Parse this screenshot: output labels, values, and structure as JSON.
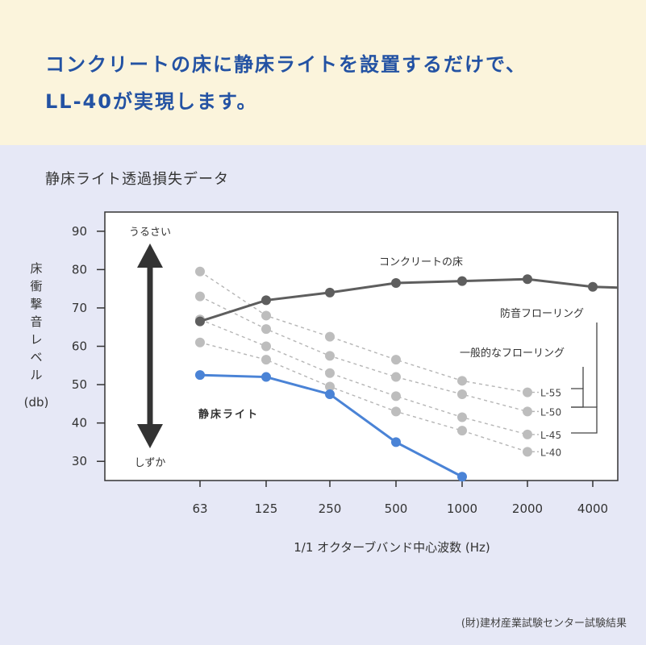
{
  "header": {
    "line1": "コンクリートの床に静床ライトを設置するだけで、",
    "line2": "LL-40が実現します。"
  },
  "caption": "静床ライト透過損失データ",
  "source": "(財)建材産業試験センター試験結果",
  "colors": {
    "concrete": "#5e5e5e",
    "seijo": "#4a83d6",
    "grey": "#bdbdbd",
    "headline": "#2352a3"
  },
  "chart_data": {
    "type": "line",
    "categories": [
      "63",
      "125",
      "250",
      "500",
      "1000",
      "2000",
      "4000"
    ],
    "ylim": [
      25,
      95
    ],
    "yticks": [
      30,
      40,
      50,
      60,
      70,
      80,
      90
    ],
    "xlabel": "1/1 オクターブバンド中心波数 (Hz)",
    "ylabel": [
      "床",
      "衝",
      "撃",
      "音",
      "レ",
      "ベ",
      "ル",
      "(db)"
    ],
    "arrow_top_label": "うるさい",
    "arrow_bottom_label": "しずか",
    "annotations": {
      "concrete": "コンクリートの床",
      "soundproof": "防音フローリング",
      "general": "一般的なフローリング",
      "seijo": "静床ライト"
    },
    "series": [
      {
        "name": "コンクリートの床",
        "values": [
          66.5,
          72,
          74,
          76.5,
          77,
          77.5,
          75.5
        ]
      },
      {
        "name": "静床ライト",
        "values": [
          52.5,
          52,
          47.5,
          35,
          26,
          null,
          null
        ]
      },
      {
        "name": "L-55",
        "values": [
          79.5,
          68,
          62.5,
          56.5,
          51,
          48,
          null
        ]
      },
      {
        "name": "L-50",
        "values": [
          73,
          64.5,
          57.5,
          52,
          47.5,
          43,
          null
        ]
      },
      {
        "name": "L-45",
        "values": [
          67,
          60,
          53,
          47,
          41.5,
          37,
          null
        ]
      },
      {
        "name": "L-40",
        "values": [
          61,
          56.5,
          49.5,
          43,
          38,
          32.5,
          null
        ]
      }
    ]
  }
}
